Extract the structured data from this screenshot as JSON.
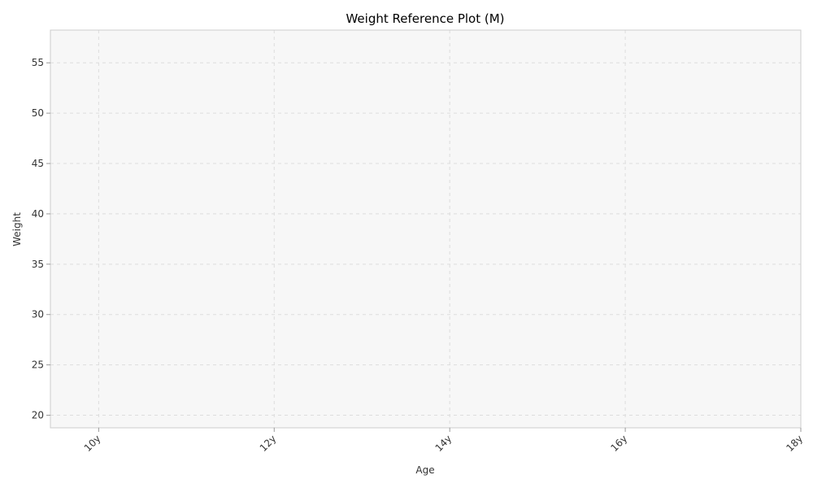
{
  "chart_data": {
    "type": "line",
    "title": "Weight Reference Plot (M)",
    "xlabel": "Age",
    "ylabel": "Weight",
    "x_ticks": [
      {
        "value": 10,
        "label": "10y"
      },
      {
        "value": 12,
        "label": "12y"
      },
      {
        "value": 14,
        "label": "14y"
      },
      {
        "value": 16,
        "label": "16y"
      },
      {
        "value": 18,
        "label": "18y"
      }
    ],
    "y_ticks": [
      {
        "value": 20,
        "label": "20"
      },
      {
        "value": 25,
        "label": "25"
      },
      {
        "value": 30,
        "label": "30"
      },
      {
        "value": 35,
        "label": "35"
      },
      {
        "value": 40,
        "label": "40"
      },
      {
        "value": 45,
        "label": "45"
      },
      {
        "value": 50,
        "label": "50"
      },
      {
        "value": 55,
        "label": "55"
      }
    ],
    "xlim": [
      9.45,
      18
    ],
    "ylim": [
      18.75,
      58.25
    ],
    "grid": true,
    "series": [],
    "colors": {
      "plot_background": "#f7f7f7",
      "grid": "#dddddd",
      "frame": "#cccccc",
      "text": "#333333"
    }
  }
}
